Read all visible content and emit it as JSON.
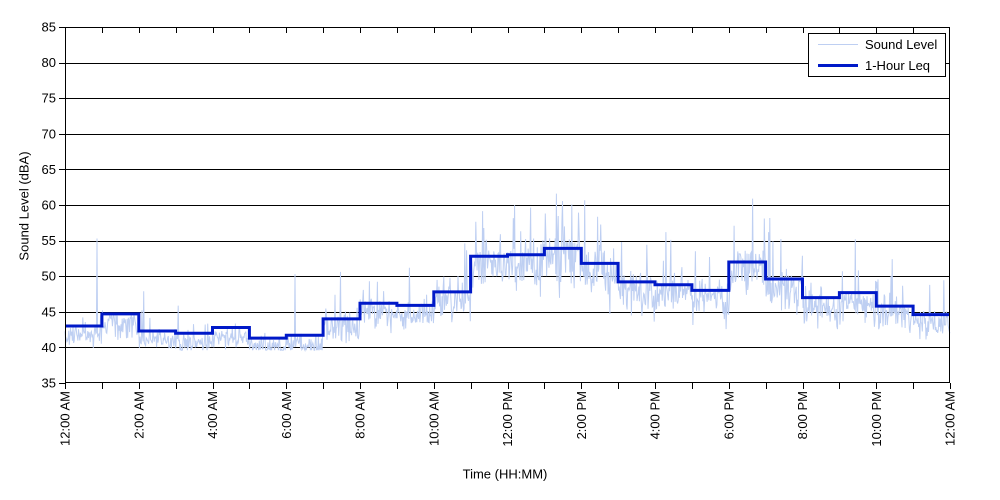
{
  "chart_data": {
    "type": "line",
    "title": "",
    "xlabel": "Time (HH:MM)",
    "ylabel": "Sound Level (dBA)",
    "x_axis": {
      "range_hours": [
        0,
        24
      ],
      "minor_tick_every_hours": 1,
      "label_every_hours": 2,
      "tick_labels": [
        "12:00 AM",
        "2:00 AM",
        "4:00 AM",
        "6:00 AM",
        "8:00 AM",
        "10:00 AM",
        "12:00 PM",
        "2:00 PM",
        "4:00 PM",
        "6:00 PM",
        "8:00 PM",
        "10:00 PM",
        "12:00 AM"
      ]
    },
    "y_axis": {
      "range": [
        35,
        85
      ],
      "ticks": [
        35,
        40,
        45,
        50,
        55,
        60,
        65,
        70,
        75,
        80,
        85
      ]
    },
    "grid": {
      "horizontal": true,
      "vertical": false,
      "color": "#000000"
    },
    "legend": {
      "position": "top-right",
      "entries": [
        {
          "label": "Sound Level",
          "color": "#becff2",
          "line_width": 1
        },
        {
          "label": "1-Hour Leq",
          "color": "#0019c8",
          "line_width": 3
        }
      ]
    },
    "series": [
      {
        "name": "Sound Level",
        "type": "noisy-minute-trace",
        "color": "#becff2",
        "line_width": 1,
        "points_per_hour": 60,
        "generator": {
          "seed": 1337,
          "offset_from_leq": -1.3,
          "min_clamp": 39.6,
          "sigma_by_hour": [
            0.8,
            0.9,
            0.8,
            0.8,
            0.8,
            0.7,
            0.9,
            1.1,
            1.0,
            1.0,
            1.4,
            1.8,
            1.9,
            2.0,
            1.8,
            1.6,
            1.5,
            1.4,
            1.7,
            1.5,
            1.4,
            1.5,
            1.2,
            1.1
          ],
          "spike_prob_by_hour": [
            0.02,
            0.03,
            0.02,
            0.02,
            0.03,
            0.01,
            0.03,
            0.04,
            0.04,
            0.04,
            0.06,
            0.08,
            0.08,
            0.08,
            0.07,
            0.06,
            0.06,
            0.05,
            0.07,
            0.05,
            0.05,
            0.06,
            0.04,
            0.03
          ],
          "notable_spikes_minute_value": [
            [
              52,
              55.3
            ],
            [
              128,
              47.9
            ],
            [
              374,
              50.3
            ],
            [
              448,
              50.6
            ],
            [
              560,
              51.2
            ],
            [
              650,
              54.6
            ],
            [
              708,
              55.9
            ],
            [
              741,
              56.3
            ],
            [
              781,
              58.8
            ],
            [
              799,
              61.6
            ],
            [
              812,
              57.0
            ],
            [
              836,
              56.1
            ],
            [
              905,
              54.8
            ],
            [
              985,
              55.1
            ],
            [
              1025,
              53.5
            ],
            [
              1118,
              60.9
            ],
            [
              1144,
              56.2
            ],
            [
              1285,
              55.2
            ],
            [
              1345,
              52.4
            ]
          ]
        }
      },
      {
        "name": "1-Hour Leq",
        "type": "step",
        "color": "#0019c8",
        "line_width": 3,
        "hourly_values_dba": [
          43.0,
          44.7,
          42.3,
          42.0,
          42.8,
          41.3,
          41.7,
          44.0,
          46.2,
          45.9,
          47.8,
          52.8,
          53.0,
          53.9,
          51.8,
          49.2,
          48.8,
          48.0,
          52.0,
          49.6,
          47.0,
          47.7,
          45.8,
          44.6
        ]
      }
    ]
  }
}
